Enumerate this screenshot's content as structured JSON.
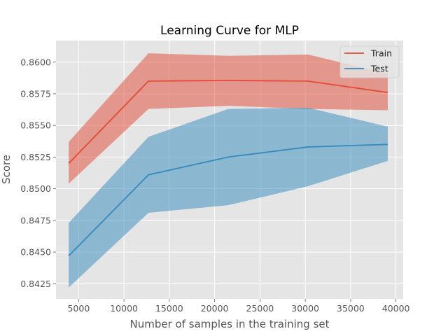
{
  "chart_data": {
    "type": "line",
    "title": "Learning Curve for MLP",
    "xlabel": "Number of samples in the training set",
    "ylabel": "Score",
    "xlim": [
      2500,
      40800
    ],
    "ylim": [
      0.8413,
      0.8617
    ],
    "x_ticks": [
      5000,
      10000,
      15000,
      20000,
      25000,
      30000,
      35000,
      40000
    ],
    "y_ticks": [
      0.8425,
      0.845,
      0.8475,
      0.85,
      0.8525,
      0.855,
      0.8575,
      0.86
    ],
    "grid": true,
    "legend_position": "top-right",
    "x": [
      3900,
      12700,
      21500,
      30300,
      39100
    ],
    "series": [
      {
        "name": "Train",
        "color": "#e24a33",
        "values": [
          0.852,
          0.8585,
          0.85855,
          0.8585,
          0.8576
        ],
        "band_lower": [
          0.8504,
          0.8563,
          0.85655,
          0.8563,
          0.8562
        ],
        "band_upper": [
          0.8537,
          0.8607,
          0.8605,
          0.8606,
          0.8591
        ]
      },
      {
        "name": "Test",
        "color": "#348abd",
        "values": [
          0.8447,
          0.8511,
          0.8525,
          0.8533,
          0.8535
        ],
        "band_lower": [
          0.8422,
          0.8481,
          0.8487,
          0.8502,
          0.8522
        ],
        "band_upper": [
          0.8473,
          0.8541,
          0.8563,
          0.8564,
          0.8549
        ]
      }
    ]
  },
  "colors": {
    "plot_background": "#e5e5e5",
    "grid": "#ffffff"
  }
}
